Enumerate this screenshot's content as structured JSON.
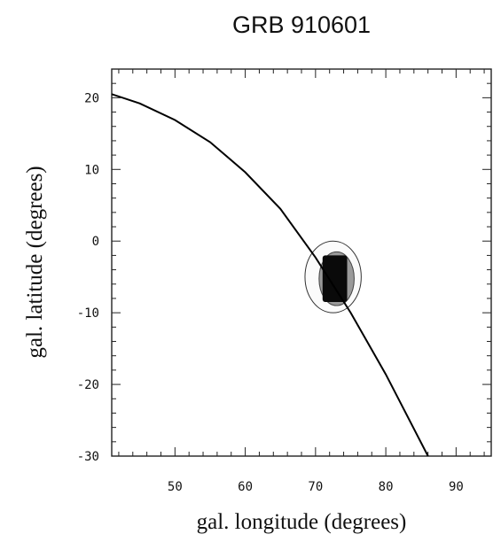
{
  "chart_data": {
    "type": "contour",
    "title": "GRB 910601",
    "xlabel": "gal. longitude (degrees)",
    "ylabel": "gal. latitude (degrees)",
    "xlim": [
      41,
      95
    ],
    "ylim": [
      -30,
      24
    ],
    "xticks": [
      50,
      60,
      70,
      80,
      90
    ],
    "yticks": [
      20,
      10,
      0,
      -10,
      -20,
      -30
    ],
    "grid": false,
    "curve": {
      "x": [
        41,
        45,
        50,
        55,
        60,
        65,
        70,
        75,
        80,
        86
      ],
      "y": [
        20.5,
        19.2,
        16.9,
        13.8,
        9.6,
        4.5,
        -2.3,
        -10.0,
        -18.6,
        -30.0
      ]
    },
    "error_box": {
      "center": [
        73,
        -5
      ],
      "core_extent": {
        "longitude": [
          71,
          74.5
        ],
        "latitude": [
          -8.5,
          -2
        ]
      },
      "contours": [
        {
          "level": "inner",
          "longitude": [
            70.5,
            75.5
          ],
          "latitude": [
            -9,
            -1.5
          ]
        },
        {
          "level": "outer",
          "longitude": [
            68.5,
            76.5
          ],
          "latitude": [
            -10,
            0
          ]
        }
      ]
    }
  }
}
